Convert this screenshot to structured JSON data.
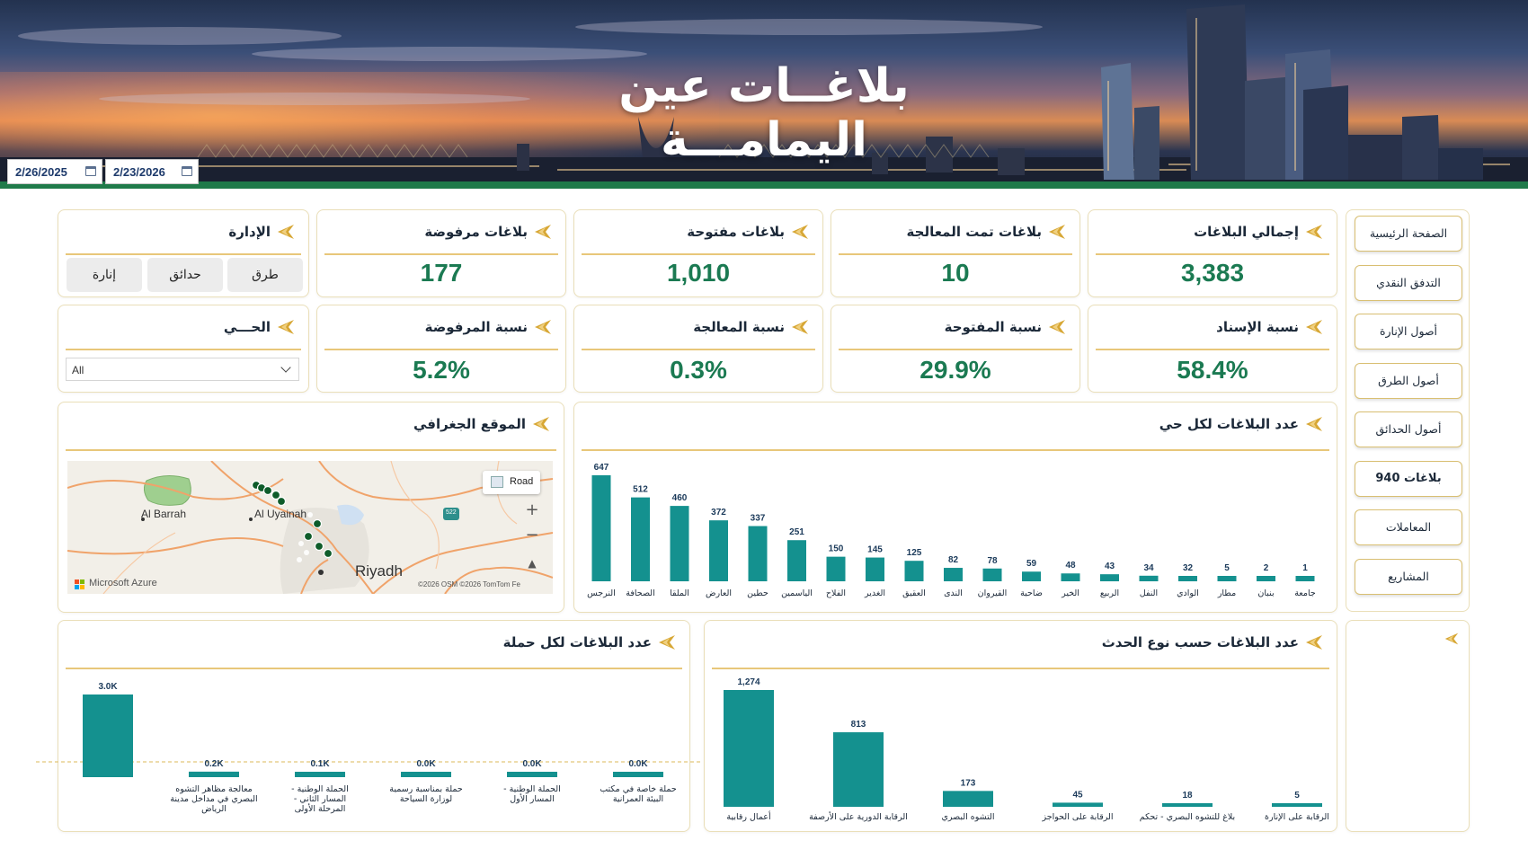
{
  "header": {
    "title": "بلاغــات عين اليمامـــة",
    "date_end": "2/26/2025",
    "date_start": "2/23/2026"
  },
  "nav": {
    "items": [
      {
        "label": "الصفحة الرئيسية",
        "bold": false
      },
      {
        "label": "التدفق النقدي",
        "bold": false
      },
      {
        "label": "أصول الإنارة",
        "bold": false
      },
      {
        "label": "أصول الطرق",
        "bold": false
      },
      {
        "label": "أصول الحدائق",
        "bold": false
      },
      {
        "label": "بلاغات 940",
        "bold": true
      },
      {
        "label": "المعاملات",
        "bold": false
      },
      {
        "label": "المشاريع",
        "bold": false
      }
    ]
  },
  "kpis": {
    "total": {
      "title": "إجمالي البلاغات",
      "value": "3,383"
    },
    "processed": {
      "title": "بلاغات  تمت المعالجة",
      "value": "10"
    },
    "open": {
      "title": "بلاغات مفتوحة",
      "value": "1,010"
    },
    "rejected": {
      "title": "بلاغات مرفوضة",
      "value": "177"
    },
    "assign_ratio": {
      "title": "نسبة الإسناد",
      "value": "58.4%"
    },
    "open_ratio": {
      "title": "نسبة المفتوحة",
      "value": "29.9%"
    },
    "processing_ratio": {
      "title": "نسبة المعالجة",
      "value": "0.3%"
    },
    "rejected_ratio": {
      "title": "نسبة المرفوضة",
      "value": "5.2%"
    }
  },
  "admin": {
    "title": "الإدارة",
    "buttons": [
      "طرق",
      "حدائق",
      "إنارة"
    ]
  },
  "district": {
    "title": "الحـــي",
    "selected": "All"
  },
  "map": {
    "title": "الموقع  الجغرافي",
    "labels": {
      "barrah": "Al Barrah",
      "uyainah": "Al Uyainah",
      "riyadh": "Riyadh",
      "azure": "Microsoft Azure",
      "copyright": "©2026 OSM  ©2026 TomTom  Fe",
      "road": "Road",
      "shield": "522"
    },
    "zoom_in": "+",
    "zoom_out": "−"
  },
  "colors": {
    "teal": "#14918f",
    "accent": "#d7a735",
    "kpi_green": "#1b7a52"
  },
  "chart_data": [
    {
      "type": "bar",
      "title": "عدد البلاغات لكل حي",
      "categories": [
        "النرجس",
        "الصحافة",
        "الملقا",
        "العارض",
        "حطين",
        "الياسمين",
        "الفلاح",
        "الغدير",
        "العقيق",
        "الندى",
        "القيروان",
        "ضاحية",
        "الخير",
        "الربيع",
        "النفل",
        "الوادي",
        "مطار",
        "بنبان",
        "جامعة"
      ],
      "values": [
        647,
        512,
        460,
        372,
        337,
        251,
        150,
        145,
        125,
        82,
        78,
        59,
        48,
        43,
        34,
        32,
        5,
        2,
        1
      ],
      "value_labels": [
        "647",
        "512",
        "460",
        "372",
        "337",
        "251",
        "150",
        "145",
        "125",
        "82",
        "78",
        "59",
        "48",
        "43",
        "34",
        "32",
        "5",
        "2",
        "1"
      ]
    },
    {
      "type": "bar",
      "title": "عدد البلاغات لكل حملة",
      "categories": [
        "",
        "معالجة مظاهر التشوه البصري في مداخل مدينة الرياض",
        "الحملة الوطنية - المسار الثاني - المرحلة الأولى",
        "حملة بمناسبة رسمية لوزارة السياحة",
        "الحملة الوطنية - المسار الأول",
        "حملة خاصة في مكتب البيئة العمرانية"
      ],
      "values": [
        3000,
        200,
        100,
        0,
        0,
        0
      ],
      "value_labels": [
        "3.0K",
        "0.2K",
        "0.1K",
        "0.0K",
        "0.0K",
        "0.0K"
      ]
    },
    {
      "type": "bar",
      "title": "عدد البلاغات حسب نوع الحدث",
      "categories": [
        "أعمال رقابية",
        "الرقابة الدورية على الأرصفة",
        "التشوه البصري",
        "الرقابة على الحواجز",
        "بلاغ للتشوه البصري - تحكم",
        "الرقابة على الإنارة"
      ],
      "values": [
        1274,
        813,
        173,
        45,
        18,
        5
      ],
      "value_labels": [
        "1,274",
        "813",
        "173",
        "45",
        "18",
        "5"
      ]
    }
  ]
}
